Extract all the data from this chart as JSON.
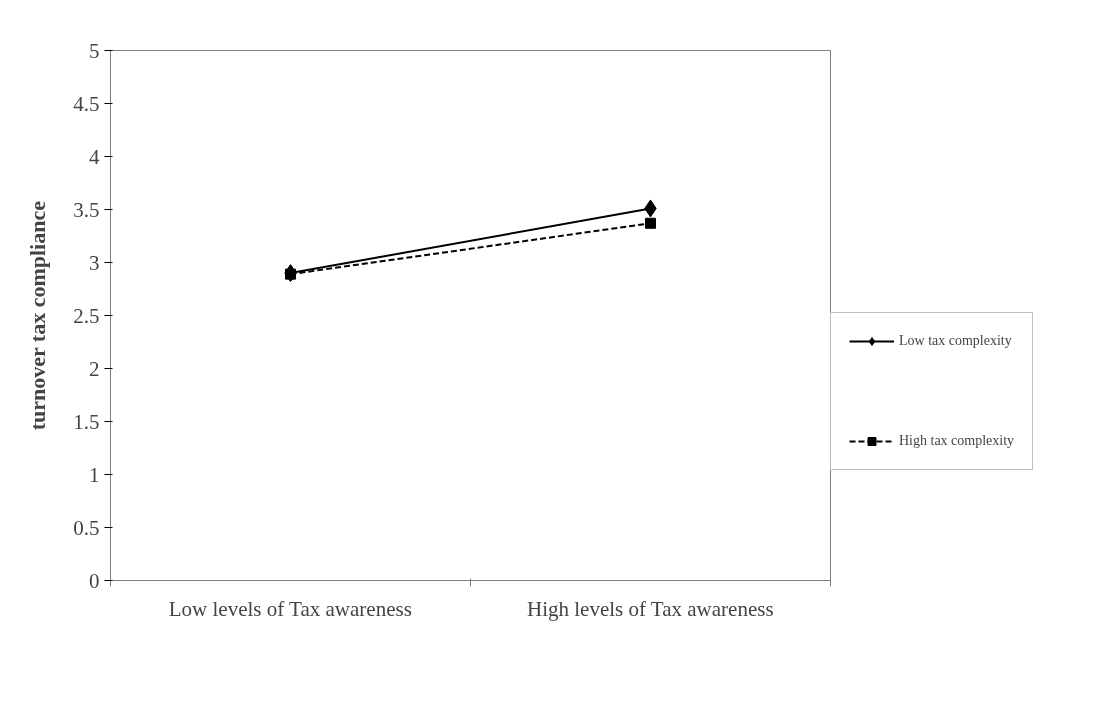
{
  "chart_data": {
    "type": "line",
    "ylabel": "turnover tax compliance",
    "categories": [
      "Low levels of Tax awareness",
      "High levels of Tax awareness"
    ],
    "series": [
      {
        "name": "Low tax complexity",
        "color": "#000000",
        "values": [
          2.9,
          3.51
        ],
        "marker": "diamond",
        "line_style": "solid"
      },
      {
        "name": "High tax complexity",
        "color": "#000000",
        "values": [
          2.89,
          3.37
        ],
        "marker": "square",
        "line_style": "dashed"
      }
    ],
    "ylim": [
      0,
      5
    ],
    "yticks": [
      0,
      0.5,
      1,
      1.5,
      2,
      2.5,
      3,
      3.5,
      4,
      4.5,
      5
    ],
    "grid": false,
    "legend": "right"
  }
}
